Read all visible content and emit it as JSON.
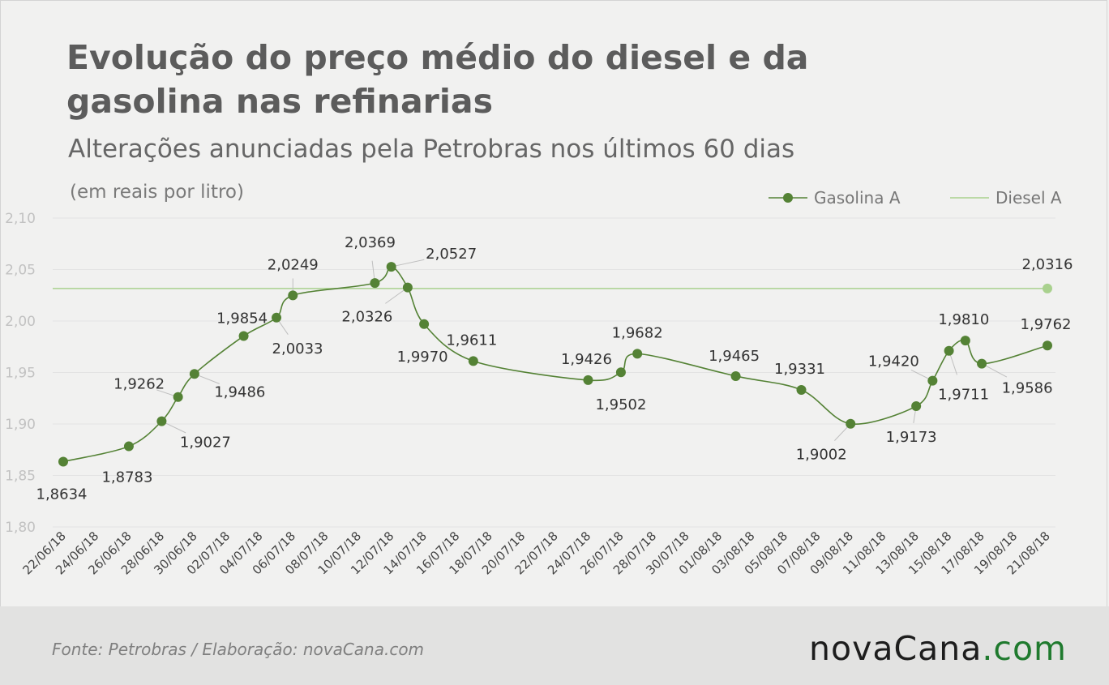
{
  "title": "Evolução do preço médio do diesel e da gasolina nas refinarias",
  "subtitle": "Alterações anunciadas pela Petrobras nos últimos 60 dias",
  "units": "(em reais por litro)",
  "footer": {
    "source": "Fonte:  Petrobras  / Elaboração:  novaCana.com",
    "logo_part1": "nova",
    "logo_part2": "Cana",
    "logo_part3": ".com"
  },
  "colors": {
    "gasolina": "#548235",
    "diesel": "#a9d18e",
    "logo_green": "#1f7a2e"
  },
  "chart_data": {
    "type": "line",
    "ylim": [
      1.8,
      2.1
    ],
    "yticks": [
      "1,80",
      "1,85",
      "1,90",
      "1,95",
      "2,00",
      "2,05",
      "2,10"
    ],
    "xticks": [
      "22/06/18",
      "24/06/18",
      "26/06/18",
      "28/06/18",
      "30/06/18",
      "02/07/18",
      "04/07/18",
      "06/07/18",
      "08/07/18",
      "10/07/18",
      "12/07/18",
      "14/07/18",
      "16/07/18",
      "18/07/18",
      "20/07/18",
      "22/07/18",
      "24/07/18",
      "26/07/18",
      "28/07/18",
      "30/07/18",
      "01/08/18",
      "03/08/18",
      "05/08/18",
      "07/08/18",
      "09/08/18",
      "11/08/18",
      "13/08/18",
      "15/08/18",
      "17/08/18",
      "19/08/18",
      "21/08/18"
    ],
    "legend_position": "top-right",
    "series": [
      {
        "name": "Gasolina A",
        "points": [
          {
            "date": "22/06/18",
            "value": 1.8634,
            "label": "1,8634"
          },
          {
            "date": "26/06/18",
            "value": 1.8783,
            "label": "1,8783"
          },
          {
            "date": "28/06/18",
            "value": 1.9027,
            "label": "1,9027"
          },
          {
            "date": "29/06/18",
            "value": 1.9262,
            "label": "1,9262"
          },
          {
            "date": "30/06/18",
            "value": 1.9486,
            "label": "1,9486"
          },
          {
            "date": "03/07/18",
            "value": 1.9854,
            "label": "1,9854"
          },
          {
            "date": "05/07/18",
            "value": 2.0033,
            "label": "2,0033"
          },
          {
            "date": "06/07/18",
            "value": 2.0249,
            "label": "2,0249"
          },
          {
            "date": "11/07/18",
            "value": 2.0369,
            "label": "2,0369"
          },
          {
            "date": "12/07/18",
            "value": 2.0527,
            "label": "2,0527"
          },
          {
            "date": "13/07/18",
            "value": 2.0326,
            "label": "2,0326"
          },
          {
            "date": "14/07/18",
            "value": 1.997,
            "label": "1,9970"
          },
          {
            "date": "17/07/18",
            "value": 1.9611,
            "label": "1,9611"
          },
          {
            "date": "24/07/18",
            "value": 1.9426,
            "label": "1,9426"
          },
          {
            "date": "26/07/18",
            "value": 1.9502,
            "label": "1,9502"
          },
          {
            "date": "27/07/18",
            "value": 1.9682,
            "label": "1,9682"
          },
          {
            "date": "02/08/18",
            "value": 1.9465,
            "label": "1,9465"
          },
          {
            "date": "06/08/18",
            "value": 1.9331,
            "label": "1,9331"
          },
          {
            "date": "09/08/18",
            "value": 1.9002,
            "label": "1,9002"
          },
          {
            "date": "13/08/18",
            "value": 1.9173,
            "label": "1,9173"
          },
          {
            "date": "14/08/18",
            "value": 1.942,
            "label": "1,9420"
          },
          {
            "date": "15/08/18",
            "value": 1.9711,
            "label": "1,9711"
          },
          {
            "date": "16/08/18",
            "value": 1.981,
            "label": "1,9810"
          },
          {
            "date": "17/08/18",
            "value": 1.9586,
            "label": "1,9586"
          },
          {
            "date": "21/08/18",
            "value": 1.9762,
            "label": "1,9762"
          }
        ]
      },
      {
        "name": "Diesel A",
        "value": 2.0316,
        "label": "2,0316",
        "from": "22/06/18",
        "to": "21/08/18"
      }
    ]
  }
}
